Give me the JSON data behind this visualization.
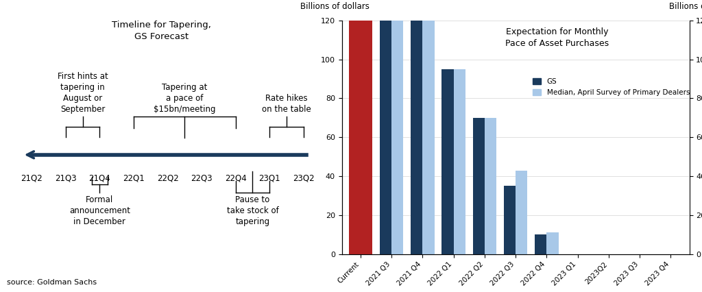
{
  "title_left": "Timeline for Tapering,\nGS Forecast",
  "title_right": "Expectation for Monthly\nPace of Asset Purchases",
  "ylabel_left": "Billions of dollars",
  "ylabel_right": "Billions of dollars",
  "source": "source: Goldman Sachs",
  "timeline_labels": [
    "21Q2",
    "21Q3",
    "21Q4",
    "22Q1",
    "22Q2",
    "22Q3",
    "22Q4",
    "23Q1",
    "23Q2"
  ],
  "bar_categories": [
    "Current",
    "2021 Q3",
    "2021 Q4",
    "2022 Q1",
    "2022 Q2",
    "2022 Q3",
    "2022 Q4",
    "2023 Q1",
    "2023Q2",
    "2023 Q3",
    "2023 Q4"
  ],
  "gs_values": [
    120,
    120,
    120,
    95,
    70,
    35,
    10,
    0,
    0,
    0,
    0
  ],
  "dealer_values": [
    null,
    120,
    120,
    95,
    70,
    43,
    11,
    0,
    0,
    0,
    0
  ],
  "current_color": "#b22222",
  "gs_color": "#1a3a5c",
  "dealer_color": "#a8c8e8",
  "ylim": [
    0,
    120
  ],
  "yticks": [
    0,
    20,
    40,
    60,
    80,
    100,
    120
  ],
  "arrow_color": "#1a3a5c",
  "legend_gs": "GS",
  "legend_dealer": "Median, April Survey of Primary Dealers"
}
